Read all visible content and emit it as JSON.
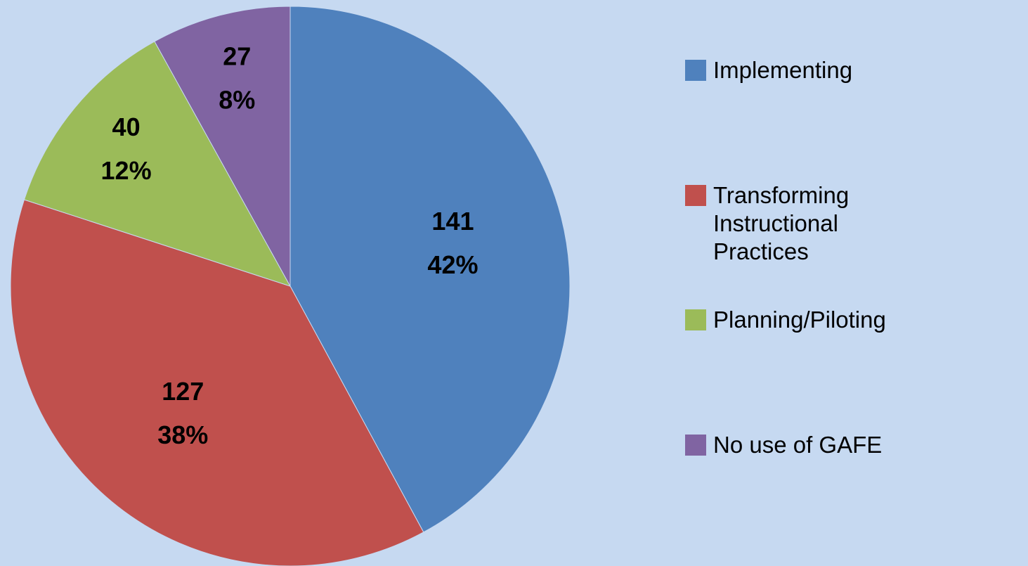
{
  "chart_data": {
    "type": "pie",
    "categories": [
      "Implementing",
      "Transforming Instructional Practices",
      "Planning/Piloting",
      "No use of GAFE"
    ],
    "values": [
      141,
      127,
      40,
      27
    ],
    "percent_labels": [
      "42%",
      "38%",
      "12%",
      "8%"
    ],
    "colors": [
      "#4f81bd",
      "#c0504d",
      "#9bbb59",
      "#8064a2"
    ],
    "legend": "right"
  }
}
